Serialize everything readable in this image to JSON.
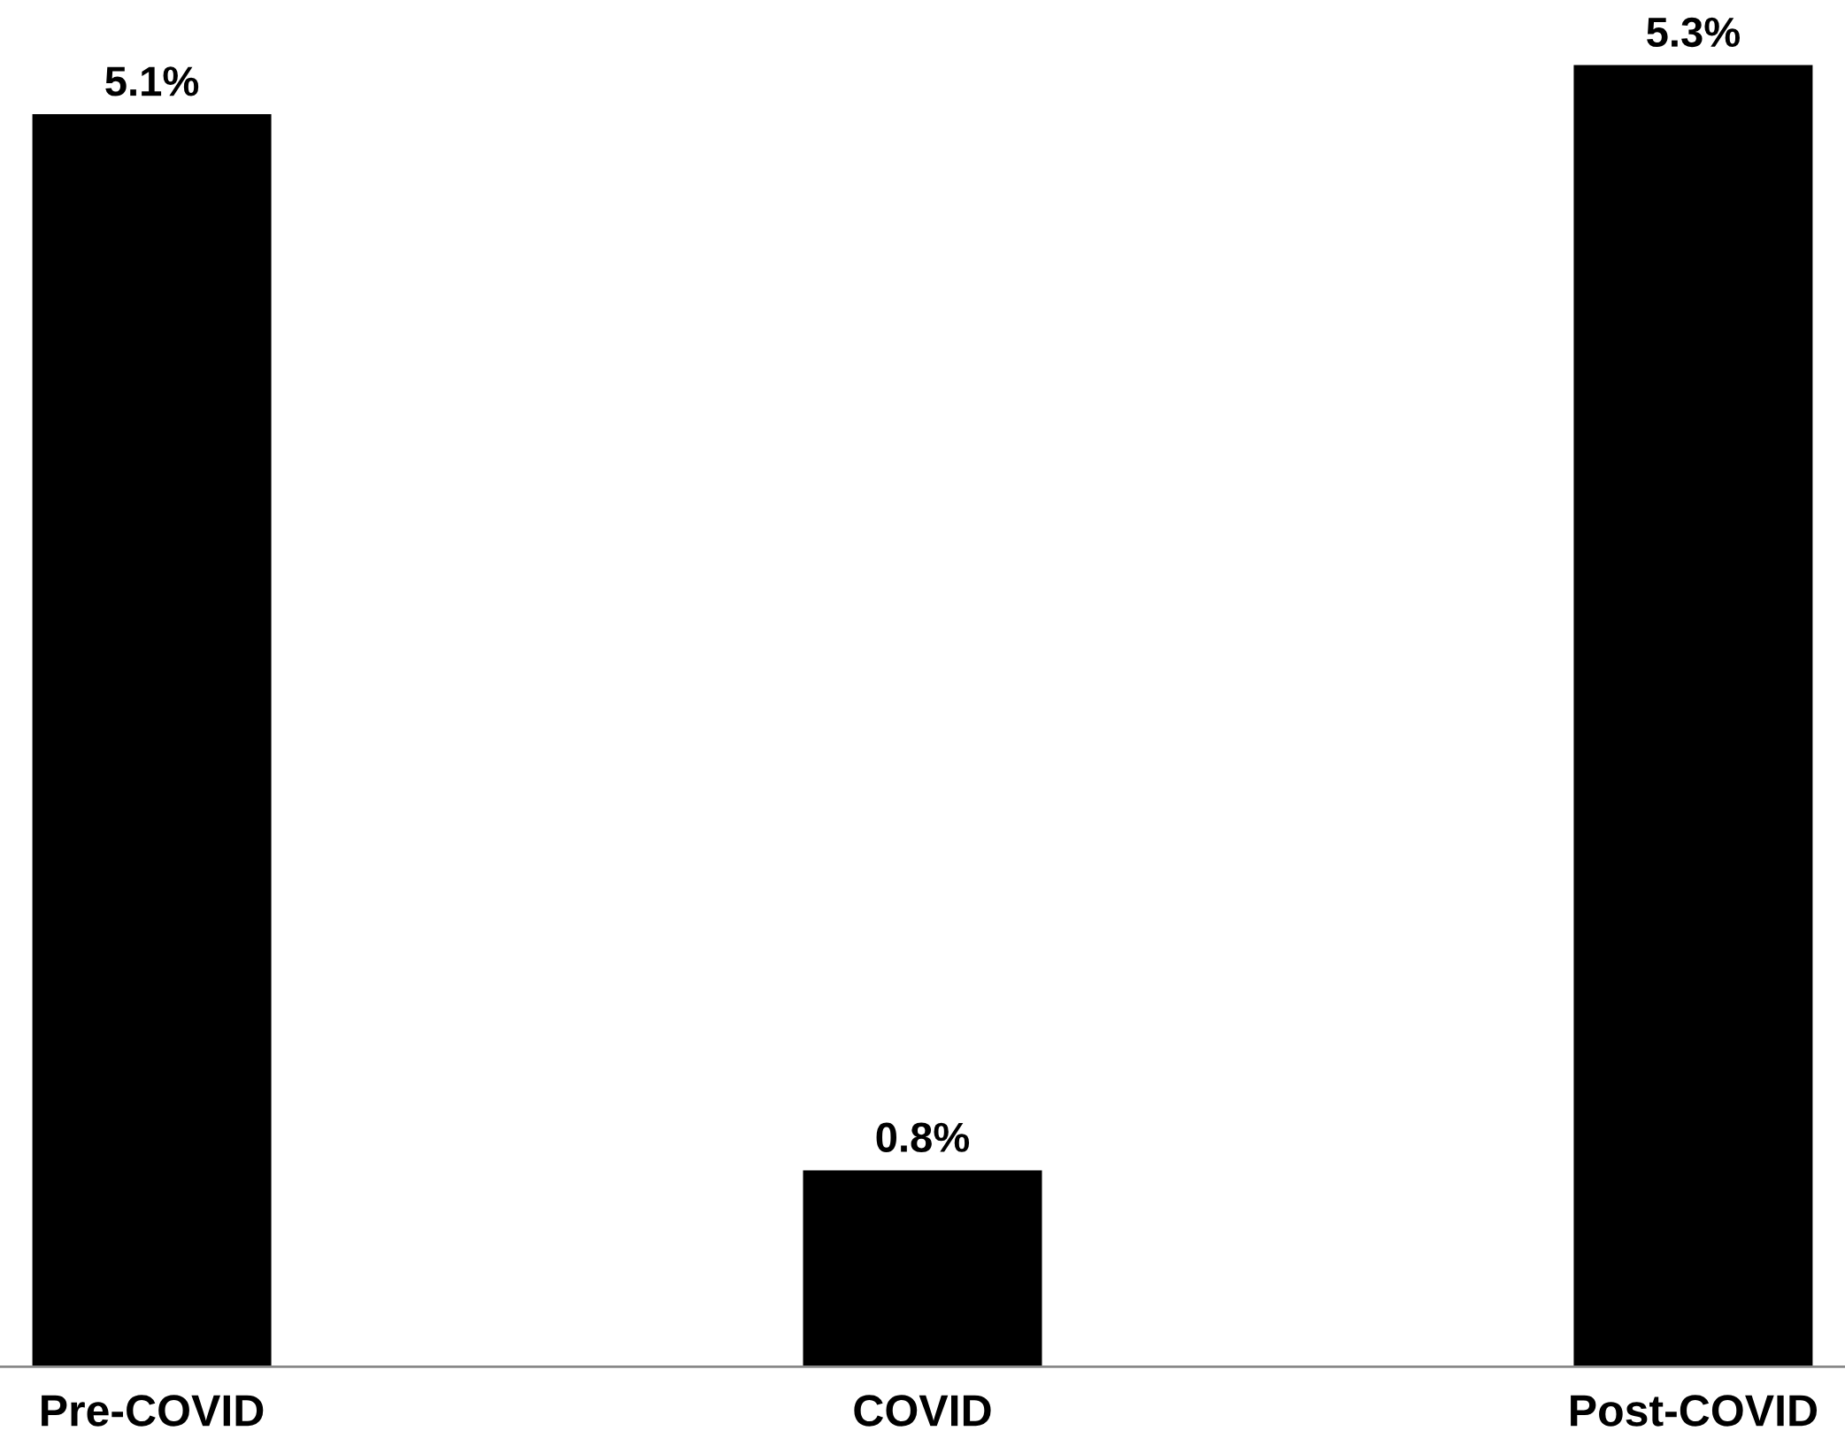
{
  "chart_data": {
    "type": "bar",
    "categories": [
      "Pre-COVID",
      "COVID",
      "Post-COVID"
    ],
    "values": [
      5.1,
      0.8,
      5.3
    ],
    "value_labels": [
      "5.1%",
      "0.8%",
      "5.3%"
    ],
    "color": "#000000",
    "grid": false,
    "legend": false
  }
}
